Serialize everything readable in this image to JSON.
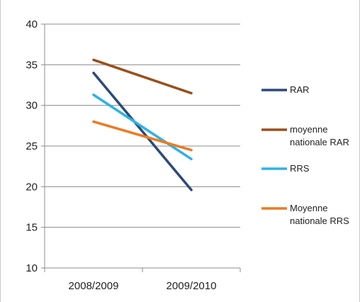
{
  "chart_data": {
    "type": "line",
    "categories": [
      "2008/2009",
      "2009/2010"
    ],
    "ylim": [
      10,
      40
    ],
    "yticks": [
      10,
      15,
      20,
      25,
      30,
      35,
      40
    ],
    "grid": true,
    "legend_position": "right",
    "series": [
      {
        "name": "RAR",
        "values": [
          34.0,
          19.6
        ],
        "color": "#2b4a7a",
        "legend_lines": [
          "RAR"
        ]
      },
      {
        "name": "moyenne nationale RAR",
        "values": [
          35.6,
          31.5
        ],
        "color": "#9b4f1a",
        "legend_lines": [
          "moyenne",
          "nationale RAR"
        ]
      },
      {
        "name": "RRS",
        "values": [
          31.3,
          23.4
        ],
        "color": "#2bb3e6",
        "legend_lines": [
          "RRS"
        ]
      },
      {
        "name": "Moyenne nationale RRS",
        "values": [
          28.0,
          24.5
        ],
        "color": "#ee7a22",
        "legend_lines": [
          "Moyenne",
          "nationale RRS"
        ]
      }
    ]
  }
}
